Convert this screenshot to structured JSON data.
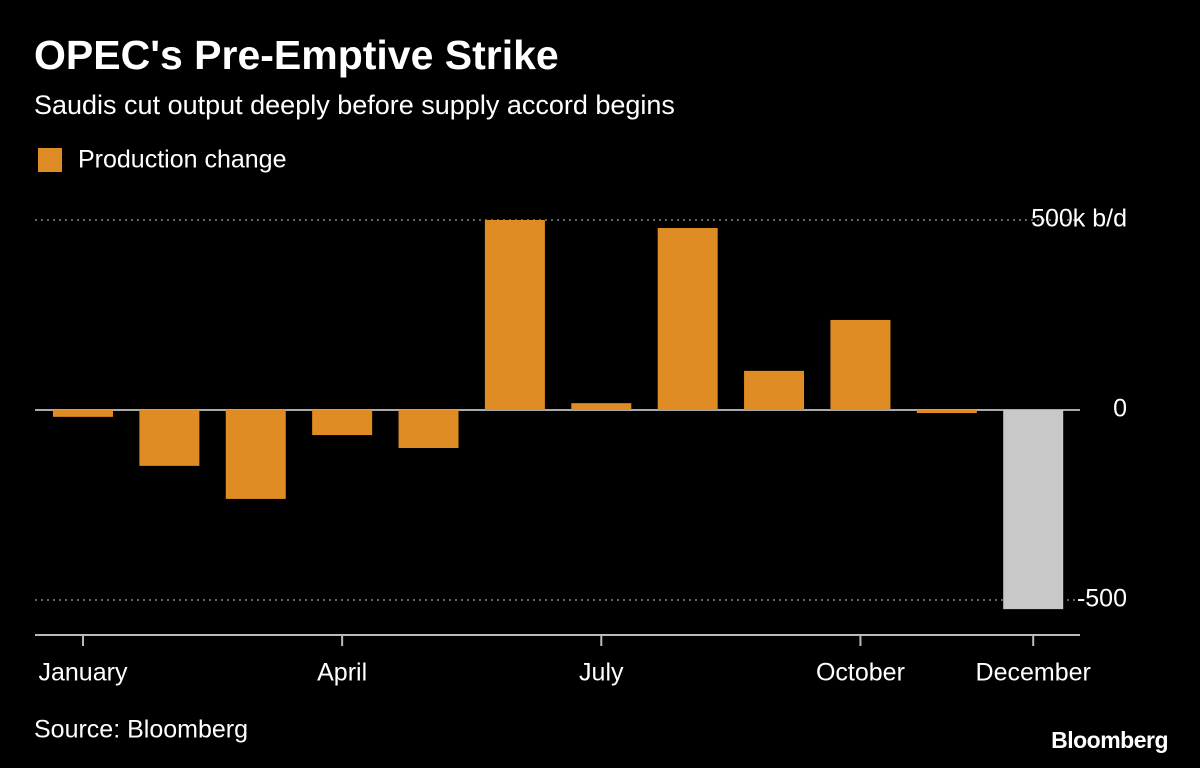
{
  "chart_data": {
    "type": "bar",
    "title": "OPEC's Pre-Emptive Strike",
    "subtitle": "Saudis cut output deeply before supply accord begins",
    "source": "Source: Bloomberg",
    "brand": "Bloomberg",
    "categories": [
      "January",
      null,
      null,
      "April",
      null,
      null,
      "July",
      null,
      null,
      "October",
      null,
      "December"
    ],
    "series": [
      {
        "name": "Production change",
        "color": "#e08c25",
        "colors": [
          "#e08c25",
          "#e08c25",
          "#e08c25",
          "#e08c25",
          "#e08c25",
          "#e08c25",
          "#e08c25",
          "#e08c25",
          "#e08c25",
          "#e08c25",
          "#e08c25",
          "#c8c8c8"
        ],
        "values": [
          -18,
          -147,
          -234,
          -66,
          -100,
          500,
          18,
          479,
          103,
          237,
          -8,
          -524
        ]
      }
    ],
    "ylim": [
      -590,
      530
    ],
    "yticks": [
      {
        "value": 500,
        "label": "500k b/d"
      },
      0,
      -500
    ],
    "grid": true
  }
}
